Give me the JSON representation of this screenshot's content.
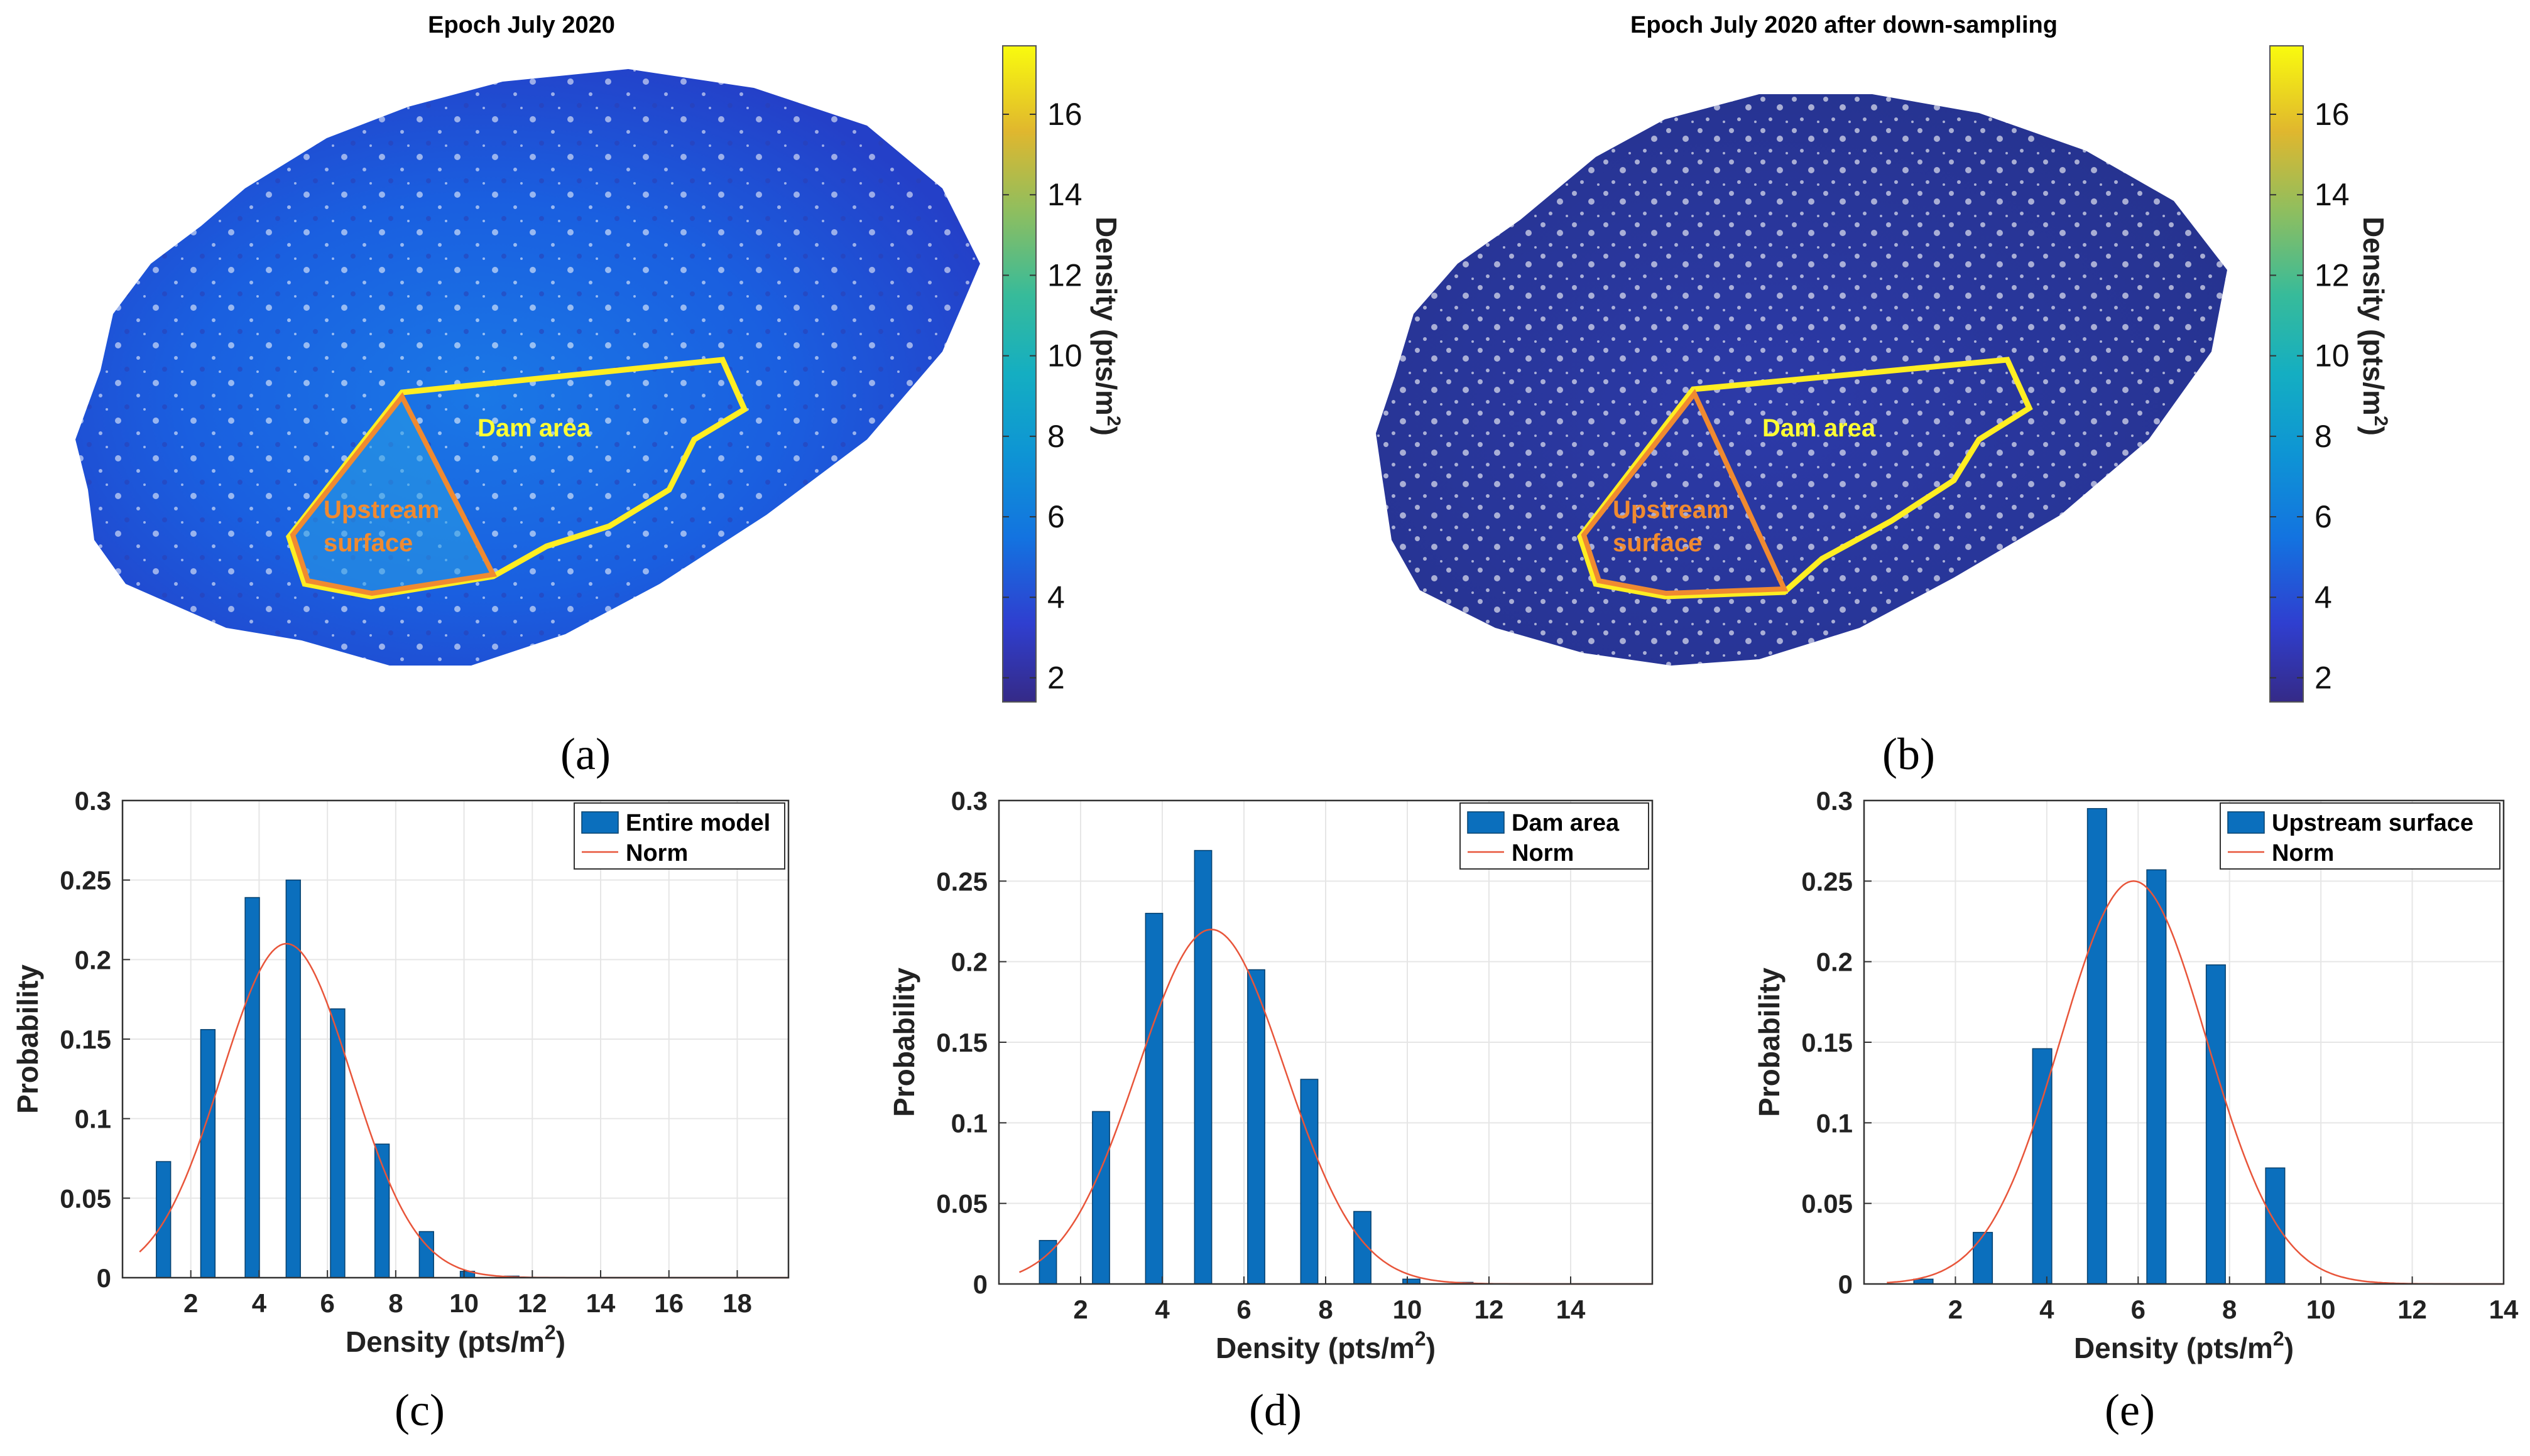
{
  "maps": {
    "a": {
      "title": "Epoch July 2020",
      "panel_label": "(a)",
      "dam_area_label": "Dam area",
      "upstream_label_line1": "Upstream",
      "upstream_label_line2": "surface"
    },
    "b": {
      "title": "Epoch July 2020 after down-sampling",
      "panel_label": "(b)",
      "dam_area_label": "Dam area",
      "upstream_label_line1": "Upstream",
      "upstream_label_line2": "surface"
    },
    "colorbar": {
      "label": "Density (pts/m",
      "label_sup": "2",
      "label_close": ")",
      "range": [
        1.4,
        17.7
      ],
      "ticks": [
        "2",
        "4",
        "6",
        "8",
        "10",
        "12",
        "14",
        "16"
      ],
      "tick_values": [
        2,
        4,
        6,
        8,
        10,
        12,
        14,
        16
      ]
    },
    "colors": {
      "boundary_yellow": "#ffee22",
      "upstream_orange": "#f08a30",
      "dam_label": "#ffff33",
      "upstream_label": "#f08a30"
    }
  },
  "chart_data": [
    {
      "type": "bar",
      "panel_label": "(c)",
      "xlabel": "Density (pts/m",
      "xlabel_sup": "2",
      "xlabel_close": ")",
      "ylabel": "Probability",
      "xlim": [
        0,
        19.5
      ],
      "ylim": [
        0,
        0.3
      ],
      "xticks": [
        2,
        4,
        6,
        8,
        10,
        12,
        14,
        16,
        18
      ],
      "xtick_labels": [
        "2",
        "4",
        "6",
        "8",
        "10",
        "12",
        "14",
        "16",
        "18"
      ],
      "yticks": [
        0,
        0.05,
        0.1,
        0.15,
        0.2,
        0.25,
        0.3
      ],
      "ytick_labels": [
        "0",
        "0.05",
        "0.1",
        "0.15",
        "0.2",
        "0.25",
        "0.3"
      ],
      "x": [
        1.2,
        2.5,
        3.8,
        5.0,
        6.3,
        7.6,
        8.9,
        10.1,
        11.4
      ],
      "values": [
        0.073,
        0.156,
        0.239,
        0.25,
        0.169,
        0.084,
        0.029,
        0.004,
        0.001
      ],
      "norm": {
        "mean": 4.8,
        "sd": 1.9,
        "peak": 0.21
      },
      "legend": {
        "bar_label": "Entire model",
        "line_label": "Norm",
        "position": "top-right"
      }
    },
    {
      "type": "bar",
      "panel_label": "(d)",
      "xlabel": "Density (pts/m",
      "xlabel_sup": "2",
      "xlabel_close": ")",
      "ylabel": "Probability",
      "xlim": [
        0,
        16
      ],
      "ylim": [
        0,
        0.3
      ],
      "xticks": [
        2,
        4,
        6,
        8,
        10,
        12,
        14
      ],
      "xtick_labels": [
        "2",
        "4",
        "6",
        "8",
        "10",
        "12",
        "14"
      ],
      "yticks": [
        0,
        0.05,
        0.1,
        0.15,
        0.2,
        0.25,
        0.3
      ],
      "ytick_labels": [
        "0",
        "0.05",
        "0.1",
        "0.15",
        "0.2",
        "0.25",
        "0.3"
      ],
      "x": [
        1.2,
        2.5,
        3.8,
        5.0,
        6.3,
        7.6,
        8.9,
        10.1,
        11.4
      ],
      "values": [
        0.027,
        0.107,
        0.23,
        0.269,
        0.195,
        0.127,
        0.045,
        0.003,
        0.001
      ],
      "norm": {
        "mean": 5.2,
        "sd": 1.8,
        "peak": 0.22
      },
      "legend": {
        "bar_label": "Dam area",
        "line_label": "Norm",
        "position": "top-right"
      }
    },
    {
      "type": "bar",
      "panel_label": "(e)",
      "xlabel": "Density (pts/m",
      "xlabel_sup": "2",
      "xlabel_close": ")",
      "ylabel": "Probability",
      "xlim": [
        0,
        14
      ],
      "ylim": [
        0,
        0.3
      ],
      "xticks": [
        2,
        4,
        6,
        8,
        10,
        12,
        14
      ],
      "xtick_labels": [
        "2",
        "4",
        "6",
        "8",
        "10",
        "12",
        "14"
      ],
      "yticks": [
        0,
        0.05,
        0.1,
        0.15,
        0.2,
        0.25,
        0.3
      ],
      "ytick_labels": [
        "0",
        "0.05",
        "0.1",
        "0.15",
        "0.2",
        "0.25",
        "0.3"
      ],
      "x": [
        1.3,
        2.6,
        3.9,
        5.1,
        6.4,
        7.7,
        9.0
      ],
      "values": [
        0.003,
        0.032,
        0.146,
        0.295,
        0.257,
        0.198,
        0.072
      ],
      "norm": {
        "mean": 5.9,
        "sd": 1.6,
        "peak": 0.25
      },
      "legend": {
        "bar_label": "Upstream surface",
        "line_label": "Norm",
        "position": "top-right"
      }
    }
  ]
}
